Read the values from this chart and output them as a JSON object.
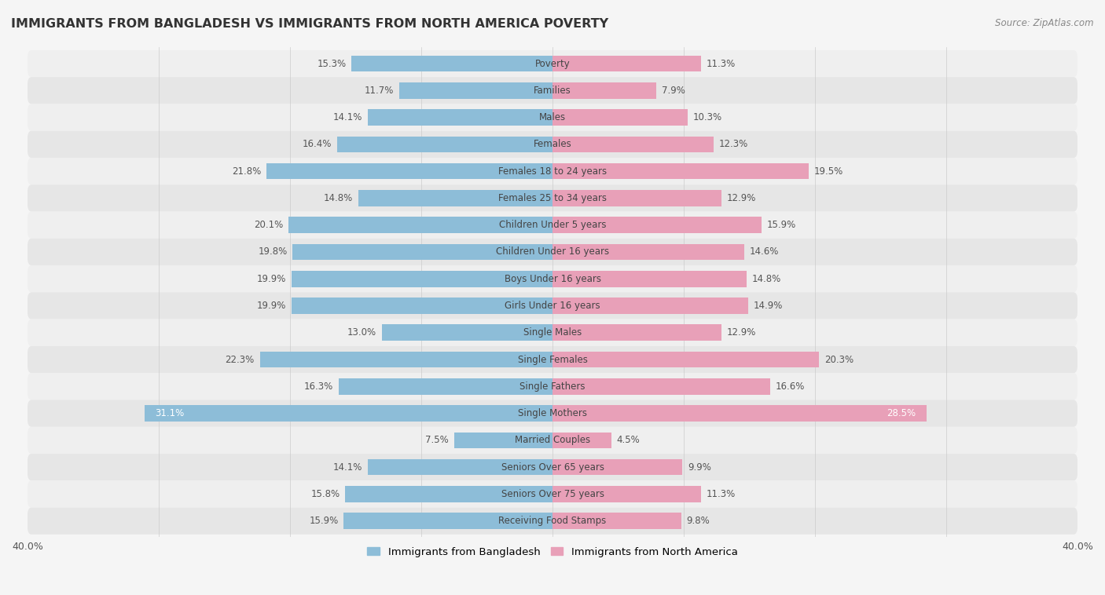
{
  "title": "IMMIGRANTS FROM BANGLADESH VS IMMIGRANTS FROM NORTH AMERICA POVERTY",
  "source": "Source: ZipAtlas.com",
  "categories": [
    "Poverty",
    "Families",
    "Males",
    "Females",
    "Females 18 to 24 years",
    "Females 25 to 34 years",
    "Children Under 5 years",
    "Children Under 16 years",
    "Boys Under 16 years",
    "Girls Under 16 years",
    "Single Males",
    "Single Females",
    "Single Fathers",
    "Single Mothers",
    "Married Couples",
    "Seniors Over 65 years",
    "Seniors Over 75 years",
    "Receiving Food Stamps"
  ],
  "bangladesh_values": [
    15.3,
    11.7,
    14.1,
    16.4,
    21.8,
    14.8,
    20.1,
    19.8,
    19.9,
    19.9,
    13.0,
    22.3,
    16.3,
    31.1,
    7.5,
    14.1,
    15.8,
    15.9
  ],
  "north_america_values": [
    11.3,
    7.9,
    10.3,
    12.3,
    19.5,
    12.9,
    15.9,
    14.6,
    14.8,
    14.9,
    12.9,
    20.3,
    16.6,
    28.5,
    4.5,
    9.9,
    11.3,
    9.8
  ],
  "bangladesh_color": "#8dbdd8",
  "north_america_color": "#e8a0b8",
  "row_colors": [
    "#f0f0f0",
    "#e8e8e8"
  ],
  "background_color": "#f5f5f5",
  "xlim": 40.0,
  "bar_height": 0.6,
  "legend_labels": [
    "Immigrants from Bangladesh",
    "Immigrants from North America"
  ],
  "label_color": "#555555",
  "white_label_color": "#ffffff",
  "center_label_color": "#444444"
}
